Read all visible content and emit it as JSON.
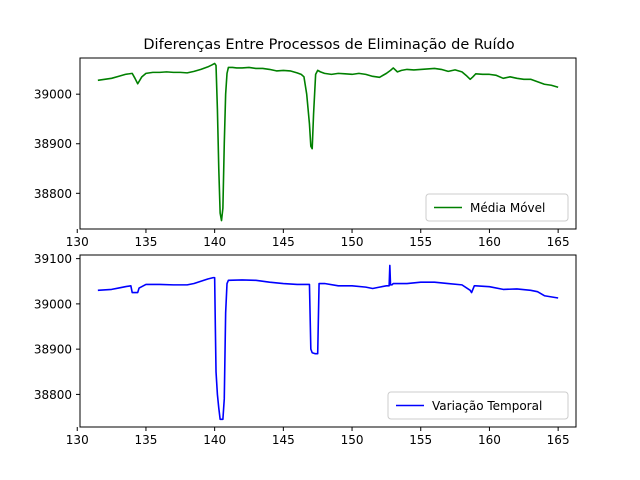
{
  "figure": {
    "title": "Diferenças Entre Processos de Eliminação de Ruído"
  },
  "chart_data": [
    {
      "type": "line",
      "title": "Diferenças Entre Processos de Eliminação de Ruído",
      "xlabel": "",
      "ylabel": "",
      "xlim": [
        130.2,
        166.3
      ],
      "ylim": [
        38728,
        39073
      ],
      "xticks": [
        130,
        135,
        140,
        145,
        150,
        155,
        160,
        165
      ],
      "yticks": [
        38800,
        38900,
        39000
      ],
      "grid": false,
      "legend": "lower right",
      "series": [
        {
          "name": "Média Móvel",
          "color": "#008000",
          "x": [
            131.5,
            132.0,
            132.5,
            133.0,
            133.5,
            134.0,
            134.2,
            134.4,
            134.7,
            135.0,
            135.5,
            136.0,
            136.5,
            137.0,
            137.5,
            138.0,
            138.5,
            139.0,
            139.5,
            139.8,
            140.0,
            140.1,
            140.2,
            140.3,
            140.4,
            140.5,
            140.6,
            140.7,
            140.8,
            140.9,
            141.0,
            141.3,
            141.6,
            142.0,
            142.5,
            143.0,
            143.5,
            144.0,
            144.5,
            145.0,
            145.5,
            146.0,
            146.3,
            146.5,
            146.7,
            146.9,
            147.0,
            147.1,
            147.2,
            147.35,
            147.5,
            147.7,
            148.0,
            148.5,
            149.0,
            149.5,
            150.0,
            150.5,
            151.0,
            151.5,
            152.0,
            152.5,
            152.8,
            153.0,
            153.3,
            153.6,
            154.0,
            154.5,
            155.0,
            155.5,
            156.0,
            156.5,
            157.0,
            157.5,
            158.0,
            158.3,
            158.6,
            158.8,
            159.0,
            159.5,
            160.0,
            160.5,
            161.0,
            161.5,
            162.0,
            162.5,
            163.0,
            163.5,
            164.0,
            164.5,
            165.0
          ],
          "y": [
            39028,
            39030,
            39032,
            39036,
            39040,
            39042,
            39032,
            39021,
            39035,
            39042,
            39044,
            39044,
            39045,
            39044,
            39044,
            39043,
            39046,
            39050,
            39055,
            39059,
            39062,
            39058,
            38970,
            38850,
            38760,
            38745,
            38770,
            38900,
            39000,
            39042,
            39054,
            39054,
            39053,
            39053,
            39054,
            39052,
            39052,
            39050,
            39047,
            39048,
            39047,
            39043,
            39040,
            39035,
            39000,
            38940,
            38895,
            38890,
            38960,
            39040,
            39048,
            39045,
            39042,
            39040,
            39042,
            39041,
            39040,
            39042,
            39040,
            39036,
            39034,
            39042,
            39048,
            39053,
            39045,
            39048,
            39050,
            39049,
            39050,
            39051,
            39052,
            39050,
            39046,
            39049,
            39045,
            39038,
            39030,
            39035,
            39041,
            39040,
            39040,
            39038,
            39032,
            39035,
            39032,
            39030,
            39030,
            39025,
            39020,
            39018,
            39014
          ]
        }
      ]
    },
    {
      "type": "line",
      "title": "",
      "xlabel": "",
      "ylabel": "",
      "xlim": [
        130.2,
        166.3
      ],
      "ylim": [
        38728,
        39108
      ],
      "xticks": [
        130,
        135,
        140,
        145,
        150,
        155,
        160,
        165
      ],
      "yticks": [
        38800,
        38900,
        39000,
        39100
      ],
      "grid": false,
      "legend": "lower right",
      "series": [
        {
          "name": "Variação Temporal",
          "color": "#0000ff",
          "x": [
            131.5,
            132.5,
            133.0,
            133.5,
            133.9,
            134.0,
            134.4,
            134.5,
            135.0,
            136.0,
            137.0,
            138.0,
            138.5,
            139.0,
            139.5,
            139.9,
            140.0,
            140.05,
            140.1,
            140.2,
            140.3,
            140.4,
            140.6,
            140.7,
            140.8,
            140.9,
            141.0,
            142.0,
            143.0,
            144.0,
            145.0,
            146.0,
            146.9,
            147.0,
            147.1,
            147.3,
            147.5,
            147.6,
            148.0,
            149.0,
            150.0,
            151.0,
            151.5,
            152.0,
            152.5,
            152.7,
            152.75,
            152.8,
            152.9,
            153.0,
            154.0,
            155.0,
            156.0,
            157.0,
            158.0,
            158.6,
            158.7,
            158.9,
            159.0,
            160.0,
            161.0,
            162.0,
            163.0,
            163.5,
            164.0,
            165.0
          ],
          "y": [
            39030,
            39032,
            39035,
            39038,
            39040,
            39025,
            39025,
            39035,
            39043,
            39043,
            39042,
            39042,
            39045,
            39050,
            39055,
            39058,
            39058,
            38950,
            38850,
            38800,
            38770,
            38745,
            38745,
            38790,
            38980,
            39045,
            39052,
            39053,
            39052,
            39048,
            39045,
            39043,
            39043,
            38900,
            38892,
            38890,
            38890,
            39045,
            39045,
            39040,
            39040,
            39037,
            39034,
            39037,
            39040,
            39040,
            39085,
            39042,
            39042,
            39045,
            39045,
            39048,
            39048,
            39045,
            39042,
            39030,
            39025,
            39040,
            39040,
            39038,
            39032,
            39033,
            39030,
            39027,
            39018,
            39013
          ]
        }
      ]
    }
  ]
}
